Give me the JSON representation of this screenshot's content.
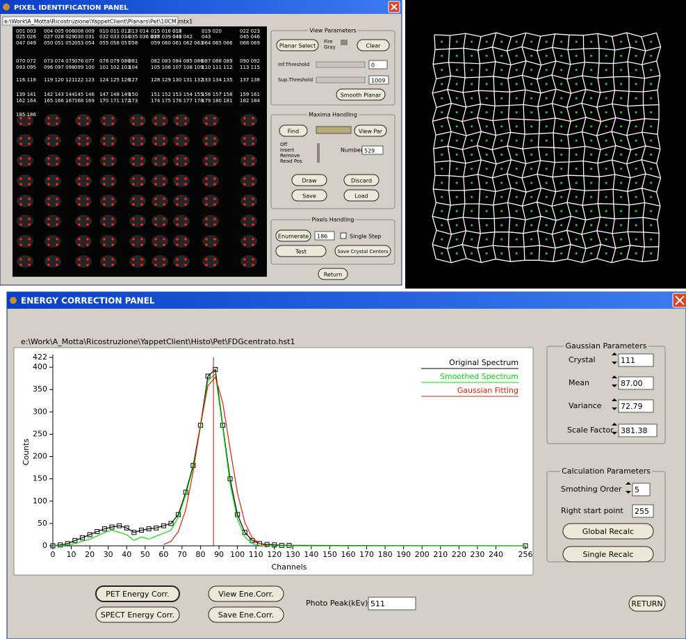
{
  "pixel_panel": {
    "title": "PIXEL IDENTIFICATION PANEL",
    "path": "e:\\Work\\A_Motta\\Ricostruzione\\YappetClient\\Planars\\Pet\\10CM.mtx1",
    "pixel_labels": [
      [
        "001 003",
        "004 005 006",
        "008 009",
        "010 011 012",
        "013 014",
        "015 016 017",
        "018",
        "019 020",
        "022 023"
      ],
      [
        "025 026",
        "027 028 029",
        "030 031",
        "032 033 034",
        "035 036 037",
        "038 039 040",
        "041 042",
        "043",
        "045 046"
      ],
      [
        "047 049",
        "050 051 052",
        "053 054",
        "055 056 057",
        "058",
        "059 060",
        "061 062 063",
        "064 065 066",
        "068 069"
      ],
      [
        "070 072",
        "073 074 075",
        "076 077",
        "078 079 080",
        "081",
        "082 083",
        "084 085 086",
        "087 088 089",
        "090 092"
      ],
      [
        "093 095",
        "096 097 098",
        "099 100",
        "101 102 103",
        "104",
        "105 106",
        "107 108 109",
        "110 111 112",
        "113 115"
      ],
      [
        "116 118",
        "119 120 121",
        "122 123",
        "124 125 126",
        "127",
        "128 129",
        "130 131 132",
        "133 134 135",
        "137 138"
      ],
      [
        "139 141",
        "142 143 144",
        "145 146",
        "147 148 149",
        "150",
        "151 152",
        "153 154 155",
        "156 157 158",
        "159 161"
      ],
      [
        "162 164",
        "165 166 167",
        "168 169",
        "170 171 172",
        "173",
        "174 175",
        "176 177 178",
        "179 180 181",
        "182 184"
      ],
      [
        "185 186"
      ]
    ],
    "view_parameters": {
      "title": "View Parameters",
      "planar_select": "Planar Select",
      "fire": "Fire",
      "gray": "Gray",
      "clear": "Clear",
      "inf_label": "Inf.Threshold",
      "inf_value": "0",
      "sup_label": "Sup.Threshold",
      "sup_value": "1009",
      "smooth": "Smooth Planar"
    },
    "maxima": {
      "title": "Maxima Handling",
      "find": "Find",
      "view_par": "View Par",
      "modes": [
        "Off",
        "Insert",
        "Remove",
        "Read Pos"
      ],
      "number_label": "Number",
      "number": "529",
      "draw": "Draw",
      "discard": "Discard",
      "save": "Save",
      "load": "Load"
    },
    "pixels": {
      "title": "Pixels Handling",
      "enumerate": "Enumerate",
      "value": "186",
      "single_step": "Single Step",
      "test": "Test",
      "save_centers": "Save Crystal Centers"
    },
    "return": "Return"
  },
  "energy_panel": {
    "title": "ENERGY CORRECTION PANEL",
    "path": "e:\\Work\\A_Motta\\Ricostruzione\\YappetClient\\Histo\\Pet\\FDGcentrato.hst1",
    "gaussian": {
      "title": "Gaussian Parameters",
      "crystal_label": "Crystal",
      "crystal": "111",
      "mean_label": "Mean",
      "mean": "87.00",
      "variance_label": "Variance",
      "variance": "72.79",
      "scale_label": "Scale Factor",
      "scale": "381.38"
    },
    "calc": {
      "title": "Calculation Parameters",
      "order_label": "Smothing Order",
      "order": "5",
      "right_label": "Right start point",
      "right": "255",
      "global": "Global Recalc",
      "single": "Single Recalc"
    },
    "pet": "PET Energy Corr.",
    "spect": "SPECT Energy Corr.",
    "view": "View Ene.Corr.",
    "save": "Save Ene.Corr.",
    "photopeak_label": "Photo Peak(kEv)",
    "photopeak": "511",
    "return": "RETURN"
  },
  "chart_data": {
    "type": "line",
    "xlabel": "Channels",
    "ylabel": "Counts",
    "legend": "upper right",
    "x": [
      0,
      4,
      8,
      12,
      16,
      20,
      24,
      28,
      32,
      36,
      40,
      44,
      48,
      52,
      56,
      60,
      64,
      68,
      72,
      76,
      80,
      84,
      88,
      92,
      96,
      100,
      104,
      108,
      112,
      116,
      120,
      124,
      128,
      256
    ],
    "series": [
      {
        "name": "Original Spectrum",
        "color": "#000000",
        "marker": "square",
        "values": [
          0,
          2,
          5,
          12,
          18,
          25,
          32,
          38,
          42,
          45,
          40,
          30,
          35,
          38,
          40,
          45,
          50,
          70,
          120,
          180,
          270,
          380,
          395,
          270,
          150,
          70,
          30,
          12,
          5,
          3,
          2,
          1,
          1,
          0
        ]
      },
      {
        "name": "Smoothed Spectrum",
        "color": "#00e000",
        "values": [
          0,
          0,
          2,
          5,
          10,
          15,
          22,
          30,
          35,
          30,
          25,
          12,
          20,
          15,
          22,
          28,
          35,
          65,
          115,
          175,
          265,
          370,
          385,
          265,
          140,
          60,
          20,
          5,
          1,
          0,
          0,
          0,
          0,
          0
        ]
      },
      {
        "name": "Gaussian Fitting",
        "color": "#e02000",
        "values": [
          null,
          null,
          null,
          null,
          null,
          null,
          null,
          null,
          null,
          null,
          null,
          null,
          null,
          null,
          null,
          3,
          10,
          32,
          81,
          166,
          272,
          358,
          378,
          321,
          218,
          119,
          52,
          18,
          5,
          1,
          null,
          null,
          null,
          null
        ]
      }
    ],
    "marker_line": {
      "x": 87,
      "color": "#e00000"
    },
    "xlim": [
      0,
      256
    ],
    "ylim": [
      0,
      422
    ],
    "xticks": [
      0,
      10,
      20,
      30,
      40,
      50,
      60,
      70,
      80,
      90,
      100,
      110,
      120,
      130,
      140,
      150,
      160,
      170,
      180,
      190,
      200,
      210,
      220,
      230,
      240,
      256
    ],
    "yticks": [
      0,
      50,
      100,
      150,
      200,
      250,
      300,
      350,
      400,
      422
    ]
  }
}
